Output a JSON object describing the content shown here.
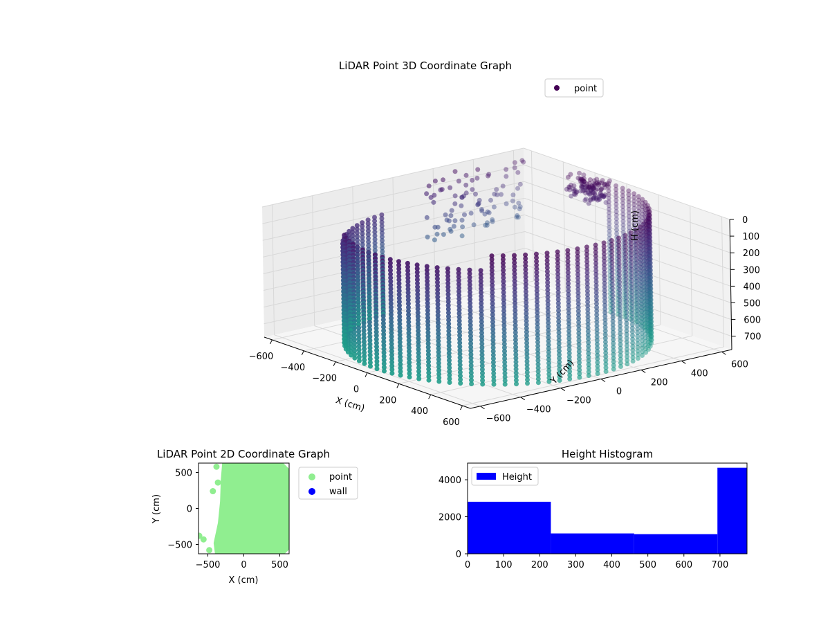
{
  "chart_data": [
    {
      "type": "scatter",
      "projection": "3d",
      "title": "LiDAR Point 3D Coordinate Graph",
      "xlabel": "X (cm)",
      "ylabel": "Y (cm)",
      "zlabel": "H (cm)",
      "xticks": [
        "−600",
        "−400",
        "−200",
        "0",
        "200",
        "400",
        "600"
      ],
      "yticks": [
        "−600",
        "−400",
        "−200",
        "0",
        "200",
        "400",
        "600"
      ],
      "zticks": [
        "0",
        "100",
        "200",
        "300",
        "400",
        "500",
        "600",
        "700"
      ],
      "xlim": [
        -650,
        650
      ],
      "ylim": [
        -650,
        650
      ],
      "zlim": [
        780,
        0
      ],
      "zaxis_inverted": true,
      "colormap": "viridis (height-colored, dark purple to teal)",
      "legend": {
        "position": "top-right",
        "entries": [
          "point"
        ],
        "colors": [
          "#440154"
        ]
      },
      "grid": true,
      "description_points": "Ring of points along a circular wall of radius about 600 cm, heights 0 to about 780 cm, plus a dense cluster near the top and scattered points on the far left wall."
    },
    {
      "type": "scatter",
      "title": "LiDAR Point 2D Coordinate Graph",
      "xlabel": "X (cm)",
      "ylabel": "Y (cm)",
      "xticks": [
        "−500",
        "0",
        "500"
      ],
      "yticks": [
        "−500",
        "0",
        "500"
      ],
      "xlim": [
        -630,
        630
      ],
      "ylim": [
        -630,
        630
      ],
      "legend": {
        "position": "outside-right",
        "entries": [
          "point",
          "wall"
        ],
        "colors": [
          "#90ee90",
          "#0000ff"
        ]
      },
      "grid": false
    },
    {
      "type": "bar",
      "title": "Height Histogram",
      "xticks": [
        "0",
        "100",
        "200",
        "300",
        "400",
        "500",
        "600",
        "700"
      ],
      "yticks": [
        "0",
        "2000",
        "4000"
      ],
      "xlim": [
        0,
        775
      ],
      "ylim": [
        0,
        4900
      ],
      "bins": [
        {
          "start": 0,
          "end": 231,
          "count": 2810
        },
        {
          "start": 231,
          "end": 462,
          "count": 1100
        },
        {
          "start": 462,
          "end": 693,
          "count": 1060
        },
        {
          "start": 693,
          "end": 775,
          "count": 4650
        }
      ],
      "series": [
        {
          "name": "Height",
          "color": "#0000ff"
        }
      ],
      "legend": {
        "position": "top-left",
        "entries": [
          "Height"
        ]
      },
      "grid": false
    }
  ]
}
